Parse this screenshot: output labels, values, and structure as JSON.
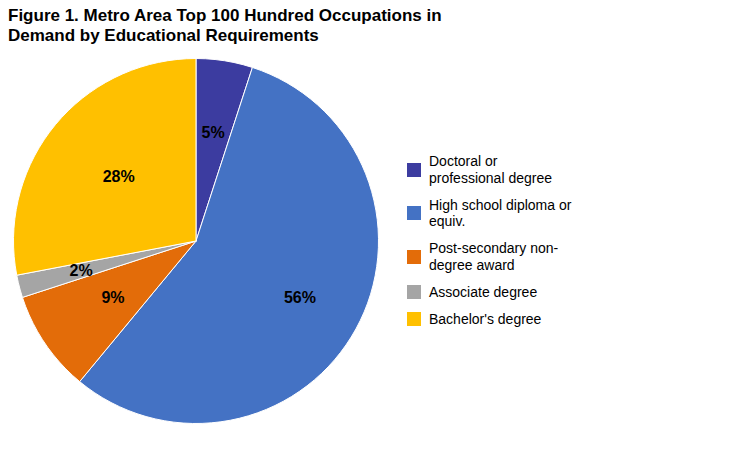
{
  "chart_data": {
    "type": "pie",
    "title": "Figure 1. Metro Area Top 100 Hundred Occupations in\nDemand by Educational Requirements",
    "categories": [
      "Doctoral or\nprofessional degree",
      "High school diploma or\nequiv.",
      "Post-secondary non-\ndegree award",
      "Associate degree",
      "Bachelor's degree"
    ],
    "values": [
      5,
      56,
      9,
      2,
      28
    ],
    "value_labels": [
      "5%",
      "56%",
      "9%",
      "2%",
      "28%"
    ],
    "colors": [
      "#3C3CA0",
      "#4472C4",
      "#E36C09",
      "#A5A5A5",
      "#FFC000"
    ],
    "data_labels": true,
    "legend": "right"
  }
}
